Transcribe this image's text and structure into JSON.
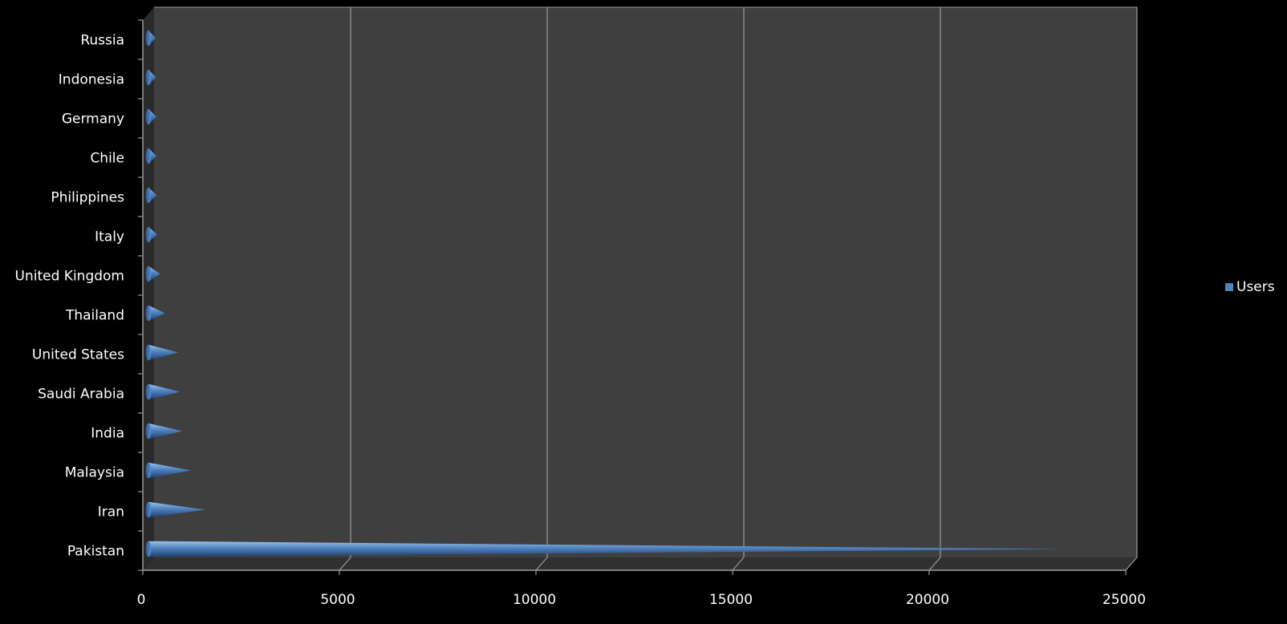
{
  "chart_data": {
    "type": "bar",
    "categories": [
      "Pakistan",
      "Iran",
      "Malaysia",
      "India",
      "Saudi Arabia",
      "United States",
      "Thailand",
      "United Kingdom",
      "Italy",
      "Philippines",
      "Chile",
      "Germany",
      "Indonesia",
      "Russia"
    ],
    "series": [
      {
        "name": "Users",
        "values": [
          23300,
          1450,
          1080,
          860,
          800,
          760,
          420,
          300,
          220,
          210,
          200,
          200,
          190,
          180
        ]
      }
    ],
    "xlim": [
      0,
      25000
    ],
    "xticks": [
      0,
      5000,
      10000,
      15000,
      20000,
      25000
    ],
    "title": "",
    "xlabel": "",
    "ylabel": "",
    "grid": true,
    "legend_position": "right",
    "colors": {
      "background": "#000000",
      "plot_wall": "#3f3f3f",
      "floor": "#303030",
      "gridline": "#9a9a9a",
      "bar": "#4f81bd",
      "bar_light": "#8eb4e3",
      "bar_dark": "#1f497d",
      "text": "#ffffff"
    },
    "bar_shape": "3d-cone"
  }
}
